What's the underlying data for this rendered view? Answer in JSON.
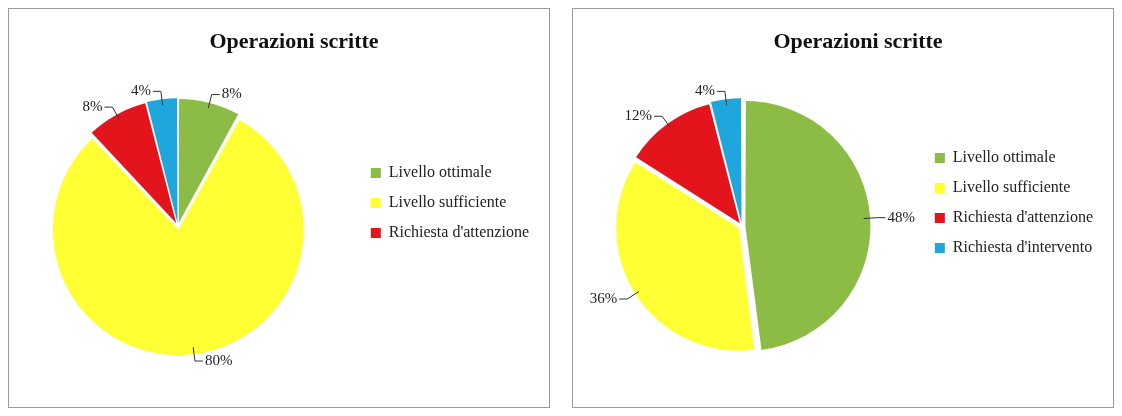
{
  "chart_data": [
    {
      "type": "pie",
      "title": "Operazioni scritte",
      "categories": [
        "Livello ottimale",
        "Livello sufficiente",
        "Richiesta d'attenzione",
        null
      ],
      "values": [
        8,
        80,
        8,
        4
      ],
      "colors": [
        "#8cbb46",
        "#ffff33",
        "#e3141b",
        "#1ea6dd"
      ],
      "value_labels": [
        "8%",
        "80%",
        "8%",
        "4%"
      ],
      "legend": "right"
    },
    {
      "type": "pie",
      "title": "Operazioni scritte",
      "categories": [
        "Livello ottimale",
        "Livello sufficiente",
        "Richiesta d'attenzione",
        "Richiesta d'intervento"
      ],
      "values": [
        48,
        36,
        12,
        4
      ],
      "colors": [
        "#8cbb46",
        "#ffff33",
        "#e3141b",
        "#1ea6dd"
      ],
      "value_labels": [
        "48%",
        "36%",
        "12%",
        "4%"
      ],
      "legend": "right"
    }
  ]
}
